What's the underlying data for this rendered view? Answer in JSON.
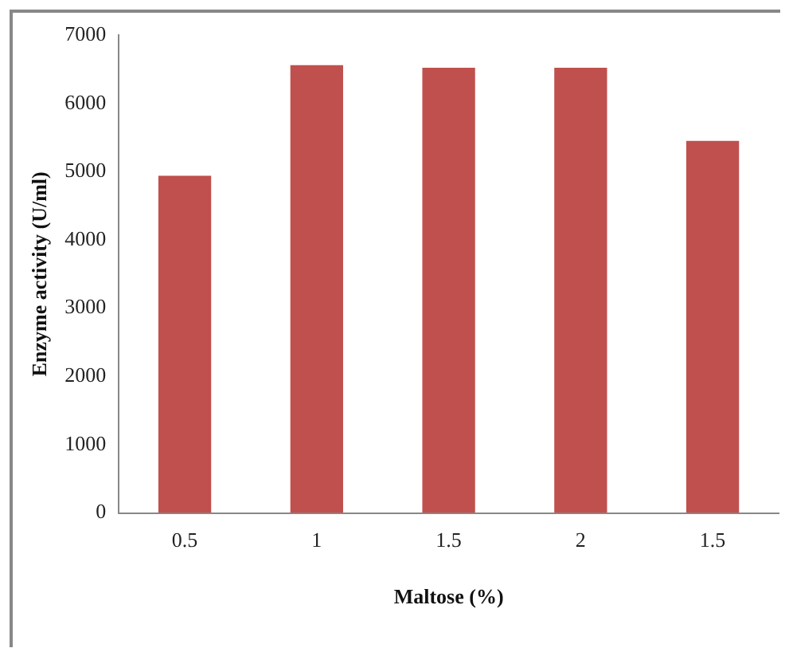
{
  "chart_data": {
    "type": "bar",
    "xlabel": "Maltose (%)",
    "ylabel": "Enzyme activity (U/ml)",
    "categories": [
      "0.5",
      "1",
      "1.5",
      "2",
      "1.5"
    ],
    "values": [
      4940,
      6560,
      6520,
      6520,
      5450
    ],
    "color": "#c0504d",
    "ylim": [
      0,
      7000
    ],
    "yticks": [
      0,
      1000,
      2000,
      3000,
      4000,
      5000,
      6000,
      7000
    ],
    "grid": false,
    "legend": false
  }
}
